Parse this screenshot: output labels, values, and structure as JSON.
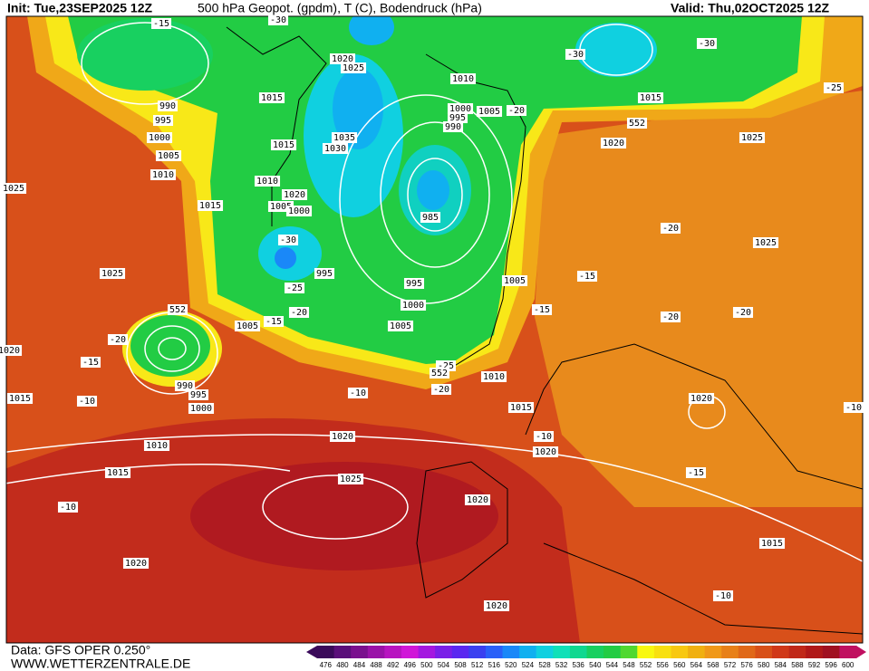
{
  "header": {
    "init": "Init: Tue,23SEP2025 12Z",
    "title": "500 hPa Geopot. (gpdm), T (C), Bodendruck (hPa)",
    "valid": "Valid: Thu,02OCT2025 12Z"
  },
  "footer": {
    "source": "Data: GFS OPER 0.250°",
    "site": "WWW.WETTERZENTRALE.DE"
  },
  "colorbar": {
    "labels": [
      476,
      480,
      484,
      488,
      492,
      496,
      500,
      504,
      508,
      512,
      516,
      520,
      524,
      528,
      532,
      536,
      540,
      544,
      548,
      552,
      556,
      560,
      564,
      568,
      572,
      576,
      580,
      584,
      588,
      592,
      596,
      600
    ],
    "colors": [
      "#3a0a5a",
      "#5a0f7a",
      "#7a108e",
      "#9a12a8",
      "#b814c0",
      "#d016d8",
      "#a418e0",
      "#7a20e8",
      "#5a28f0",
      "#3a40f0",
      "#2a60f8",
      "#1a88f8",
      "#10b0f0",
      "#10d0e0",
      "#10e0b8",
      "#10d890",
      "#18d060",
      "#22cc44",
      "#50d830",
      "#f8f810",
      "#f8e010",
      "#f8c810",
      "#f0b010",
      "#f09818",
      "#e88018",
      "#e06818",
      "#d85018",
      "#d03818",
      "#c02818",
      "#b01818",
      "#a01020",
      "#c01060"
    ]
  },
  "map_labels": [
    "1015",
    "1015",
    "1035",
    "1030",
    "1020",
    "1025",
    "1010",
    "1020",
    "1005",
    "1000",
    "-30",
    "995",
    "-25",
    "-20",
    "1005",
    "-15",
    "985",
    "990",
    "995",
    "1000",
    "1005",
    "1010",
    "-20",
    "552",
    "1020",
    "1015",
    "-30",
    "-30",
    "-25",
    "1025",
    "-20",
    "1025",
    "-15",
    "1005",
    "-15",
    "-20",
    "-20",
    "1000",
    "995",
    "1005",
    "-25",
    "-20",
    "1010",
    "1015",
    "-10",
    "1020",
    "1015",
    "-10",
    "-15",
    "-20",
    "552",
    "990",
    "995",
    "1000",
    "1010",
    "1020",
    "-10",
    "1020",
    "1015",
    "1025",
    "-15",
    "1020",
    "-10",
    "1020",
    "1020",
    "1015",
    "-10",
    "1010",
    "1005",
    "1000",
    "995",
    "990",
    "-15",
    "-30",
    "1015",
    "1025",
    "552",
    "-10",
    "1025",
    "1020"
  ]
}
